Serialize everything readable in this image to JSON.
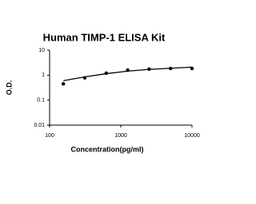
{
  "chart_data": {
    "type": "scatter",
    "title": "Human TIMP-1 ELISA Kit",
    "xlabel": "Concentration(pg/ml)",
    "ylabel": "O.D.",
    "xscale": "log",
    "yscale": "log",
    "xlim": [
      100,
      10000
    ],
    "xticks": [
      100,
      1000,
      10000
    ],
    "ylim": [
      0.01,
      10
    ],
    "yticks": [
      0.01,
      0.1,
      1,
      10
    ],
    "series": [
      {
        "type": "scatter",
        "color": "#000000",
        "x": [
          156,
          312,
          625,
          1250,
          2500,
          5000,
          10000
        ],
        "values": [
          0.45,
          0.78,
          1.2,
          1.6,
          1.75,
          1.85,
          1.85
        ]
      },
      {
        "type": "line",
        "color": "#000000",
        "x": [
          156,
          312,
          625,
          1250,
          2500,
          5000,
          10000
        ],
        "values": [
          0.6,
          0.85,
          1.15,
          1.45,
          1.7,
          1.9,
          2.1
        ]
      }
    ]
  }
}
